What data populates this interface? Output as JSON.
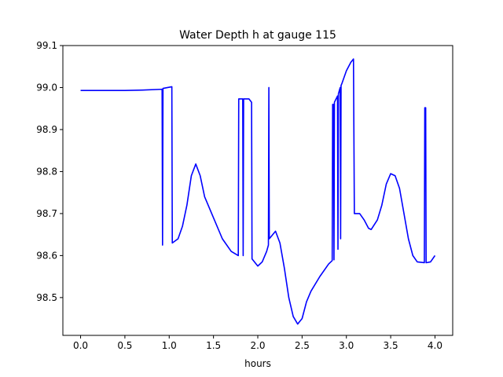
{
  "chart_data": {
    "type": "line",
    "title": "Water Depth h at gauge 115",
    "xlabel": "hours",
    "ylabel": "",
    "xlim": [
      -0.2,
      4.2
    ],
    "ylim": [
      98.41,
      99.1
    ],
    "xticks": [
      0.0,
      0.5,
      1.0,
      1.5,
      2.0,
      2.5,
      3.0,
      3.5,
      4.0
    ],
    "xtick_labels": [
      "0.0",
      "0.5",
      "1.0",
      "1.5",
      "2.0",
      "2.5",
      "3.0",
      "3.5",
      "4.0"
    ],
    "yticks": [
      98.5,
      98.6,
      98.7,
      98.8,
      98.9,
      99.0,
      99.1
    ],
    "ytick_labels": [
      "98.5",
      "98.6",
      "98.7",
      "98.8",
      "98.9",
      "99.0",
      "99.1"
    ],
    "grid": false,
    "series": [
      {
        "name": "",
        "color": "#0000ff",
        "points": [
          [
            0.0,
            98.993
          ],
          [
            0.5,
            98.993
          ],
          [
            0.7,
            98.994
          ],
          [
            0.92,
            98.996
          ],
          [
            0.925,
            98.625
          ],
          [
            0.93,
            98.998
          ],
          [
            1.03,
            99.002
          ],
          [
            1.035,
            98.63
          ],
          [
            1.1,
            98.64
          ],
          [
            1.15,
            98.67
          ],
          [
            1.2,
            98.72
          ],
          [
            1.25,
            98.79
          ],
          [
            1.3,
            98.818
          ],
          [
            1.35,
            98.79
          ],
          [
            1.4,
            98.74
          ],
          [
            1.5,
            98.69
          ],
          [
            1.6,
            98.64
          ],
          [
            1.7,
            98.61
          ],
          [
            1.78,
            98.6
          ],
          [
            1.785,
            98.973
          ],
          [
            1.83,
            98.973
          ],
          [
            1.835,
            98.6
          ],
          [
            1.84,
            98.973
          ],
          [
            1.9,
            98.973
          ],
          [
            1.93,
            98.965
          ],
          [
            1.935,
            98.592
          ],
          [
            2.0,
            98.575
          ],
          [
            2.05,
            98.585
          ],
          [
            2.1,
            98.61
          ],
          [
            2.12,
            98.625
          ],
          [
            2.125,
            99.0
          ],
          [
            2.13,
            98.64
          ],
          [
            2.2,
            98.658
          ],
          [
            2.25,
            98.63
          ],
          [
            2.3,
            98.57
          ],
          [
            2.35,
            98.5
          ],
          [
            2.4,
            98.455
          ],
          [
            2.45,
            98.437
          ],
          [
            2.5,
            98.45
          ],
          [
            2.55,
            98.49
          ],
          [
            2.6,
            98.515
          ],
          [
            2.7,
            98.55
          ],
          [
            2.8,
            98.58
          ],
          [
            2.84,
            98.588
          ],
          [
            2.845,
            98.96
          ],
          [
            2.855,
            98.96
          ],
          [
            2.86,
            98.59
          ],
          [
            2.865,
            98.965
          ],
          [
            2.9,
            98.98
          ],
          [
            2.905,
            98.615
          ],
          [
            2.91,
            98.985
          ],
          [
            2.93,
            99.0
          ],
          [
            2.935,
            98.64
          ],
          [
            2.94,
            99.005
          ],
          [
            2.95,
            99.01
          ],
          [
            3.0,
            99.04
          ],
          [
            3.05,
            99.06
          ],
          [
            3.08,
            99.068
          ],
          [
            3.09,
            98.7
          ],
          [
            3.15,
            98.7
          ],
          [
            3.2,
            98.685
          ],
          [
            3.25,
            98.665
          ],
          [
            3.28,
            98.662
          ],
          [
            3.35,
            98.685
          ],
          [
            3.4,
            98.72
          ],
          [
            3.45,
            98.77
          ],
          [
            3.5,
            98.795
          ],
          [
            3.55,
            98.79
          ],
          [
            3.6,
            98.76
          ],
          [
            3.65,
            98.7
          ],
          [
            3.7,
            98.64
          ],
          [
            3.75,
            98.6
          ],
          [
            3.8,
            98.585
          ],
          [
            3.88,
            98.583
          ],
          [
            3.885,
            98.952
          ],
          [
            3.895,
            98.952
          ],
          [
            3.9,
            98.583
          ],
          [
            3.95,
            98.585
          ],
          [
            4.0,
            98.6
          ]
        ]
      }
    ]
  }
}
